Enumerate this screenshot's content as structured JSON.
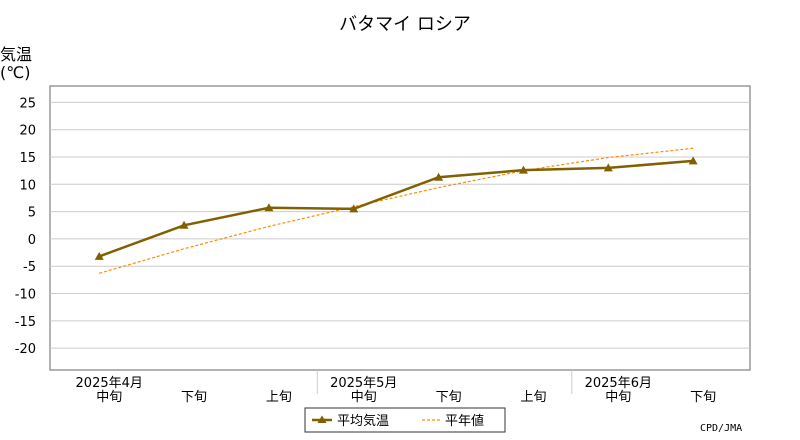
{
  "chart_data": {
    "type": "line",
    "title": "バタマイ ロシア",
    "ylabel_line1": "気温",
    "ylabel_line2": "(℃)",
    "ylim": [
      -24,
      28
    ],
    "yticks": [
      -20,
      -15,
      -10,
      -5,
      0,
      5,
      10,
      15,
      20,
      25
    ],
    "categories": [
      "中旬",
      "下旬",
      "上旬",
      "中旬",
      "下旬",
      "上旬",
      "中旬",
      "下旬"
    ],
    "month_labels": [
      {
        "label": "2025年4月",
        "at_index": 0
      },
      {
        "label": "2025年5月",
        "at_index": 3
      },
      {
        "label": "2025年6月",
        "at_index": 6
      }
    ],
    "grid": true,
    "legend_position": "bottom-center",
    "series": [
      {
        "name": "平均気温",
        "color": "#806000",
        "style": "solid",
        "marker": "triangle",
        "values": [
          -3.2,
          2.5,
          5.7,
          5.5,
          11.3,
          12.6,
          13.0,
          14.3
        ]
      },
      {
        "name": "平年値",
        "color": "#ff8c00",
        "style": "dashed",
        "marker": "none",
        "values": [
          -6.3,
          -1.8,
          2.3,
          5.9,
          9.4,
          12.5,
          14.9,
          16.6
        ]
      }
    ],
    "credit": "CPD/JMA"
  }
}
